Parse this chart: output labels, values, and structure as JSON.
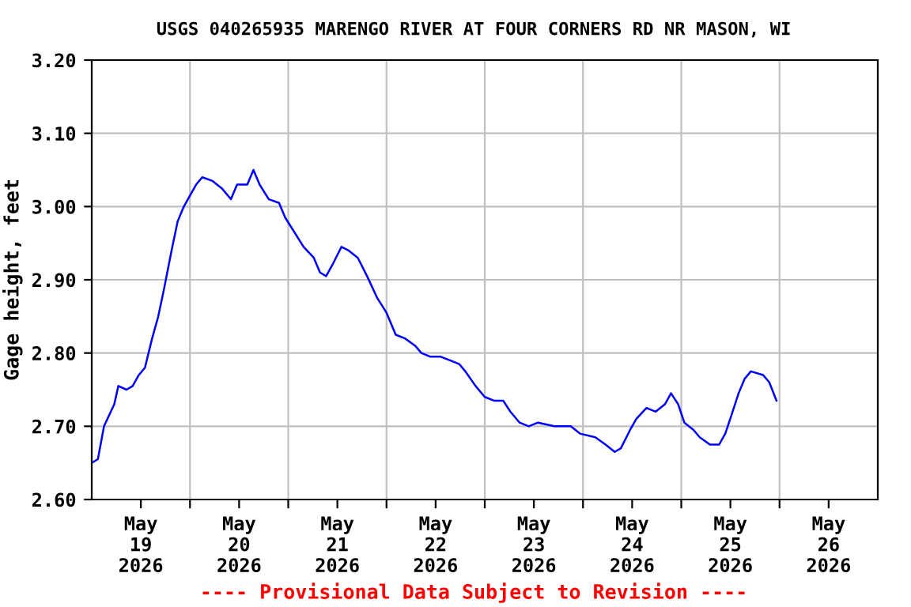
{
  "chart_data": {
    "type": "line",
    "title": "USGS 040265935 MARENGO RIVER AT FOUR CORNERS RD NR MASON, WI",
    "ylabel": "Gage height, feet",
    "annotations": [
      "---- Provisional Data Subject to Revision ----"
    ],
    "x": [
      "2026-05-19T00:00",
      "2026-05-19T01:30",
      "2026-05-19T03:00",
      "2026-05-19T05:30",
      "2026-05-19T06:30",
      "2026-05-19T08:30",
      "2026-05-19T10:00",
      "2026-05-19T11:30",
      "2026-05-19T13:00",
      "2026-05-19T14:45",
      "2026-05-19T16:15",
      "2026-05-19T17:45",
      "2026-05-19T19:30",
      "2026-05-19T21:00",
      "2026-05-19T22:30",
      "2026-05-20T00:00",
      "2026-05-20T01:30",
      "2026-05-20T03:00",
      "2026-05-20T05:30",
      "2026-05-20T07:45",
      "2026-05-20T10:00",
      "2026-05-20T11:30",
      "2026-05-20T14:00",
      "2026-05-20T15:30",
      "2026-05-20T17:00",
      "2026-05-20T19:15",
      "2026-05-20T21:45",
      "2026-05-20T23:15",
      "2026-05-21T01:30",
      "2026-05-21T03:45",
      "2026-05-21T06:15",
      "2026-05-21T07:45",
      "2026-05-21T09:15",
      "2026-05-21T10:45",
      "2026-05-21T13:00",
      "2026-05-21T14:45",
      "2026-05-21T17:00",
      "2026-05-21T19:15",
      "2026-05-21T21:45",
      "2026-05-22T00:00",
      "2026-05-22T02:15",
      "2026-05-22T04:30",
      "2026-05-22T07:00",
      "2026-05-22T08:30",
      "2026-05-22T10:45",
      "2026-05-22T13:15",
      "2026-05-22T15:30",
      "2026-05-22T17:45",
      "2026-05-22T19:15",
      "2026-05-22T21:45",
      "2026-05-23T00:00",
      "2026-05-23T02:15",
      "2026-05-23T04:30",
      "2026-05-23T06:15",
      "2026-05-23T08:30",
      "2026-05-23T10:45",
      "2026-05-23T13:00",
      "2026-05-23T17:00",
      "2026-05-23T21:00",
      "2026-05-23T23:15",
      "2026-05-24T03:00",
      "2026-05-24T05:30",
      "2026-05-24T07:45",
      "2026-05-24T09:15",
      "2026-05-24T11:30",
      "2026-05-24T13:00",
      "2026-05-24T15:30",
      "2026-05-24T17:45",
      "2026-05-24T20:00",
      "2026-05-24T21:30",
      "2026-05-24T23:15",
      "2026-05-25T00:45",
      "2026-05-25T03:00",
      "2026-05-25T04:30",
      "2026-05-25T07:00",
      "2026-05-25T09:15",
      "2026-05-25T10:45",
      "2026-05-25T12:15",
      "2026-05-25T14:00",
      "2026-05-25T15:30",
      "2026-05-25T17:00",
      "2026-05-25T20:00",
      "2026-05-25T21:30",
      "2026-05-25T23:15"
    ],
    "series": [
      {
        "color": "#0000ff",
        "values": [
          2.65,
          2.655,
          2.7,
          2.73,
          2.755,
          2.75,
          2.755,
          2.77,
          2.78,
          2.82,
          2.85,
          2.89,
          2.94,
          2.98,
          3.0,
          3.015,
          3.03,
          3.04,
          3.035,
          3.025,
          3.01,
          3.03,
          3.03,
          3.05,
          3.03,
          3.01,
          3.005,
          2.985,
          2.965,
          2.945,
          2.93,
          2.91,
          2.905,
          2.92,
          2.945,
          2.94,
          2.93,
          2.905,
          2.875,
          2.855,
          2.825,
          2.82,
          2.81,
          2.8,
          2.795,
          2.795,
          2.79,
          2.785,
          2.775,
          2.755,
          2.74,
          2.735,
          2.735,
          2.72,
          2.705,
          2.7,
          2.705,
          2.7,
          2.7,
          2.69,
          2.685,
          2.675,
          2.665,
          2.67,
          2.695,
          2.71,
          2.725,
          2.72,
          2.73,
          2.745,
          2.73,
          2.705,
          2.695,
          2.685,
          2.675,
          2.675,
          2.69,
          2.715,
          2.745,
          2.765,
          2.775,
          2.77,
          2.76,
          2.735
        ]
      }
    ],
    "xlim": [
      "2026-05-19T00:00",
      "2026-05-27T00:00"
    ],
    "xticks": [
      {
        "value": "2026-05-19T12:00",
        "label": "May\n19\n2026"
      },
      {
        "value": "2026-05-20T12:00",
        "label": "May\n20\n2026"
      },
      {
        "value": "2026-05-21T12:00",
        "label": "May\n21\n2026"
      },
      {
        "value": "2026-05-22T12:00",
        "label": "May\n22\n2026"
      },
      {
        "value": "2026-05-23T12:00",
        "label": "May\n23\n2026"
      },
      {
        "value": "2026-05-24T12:00",
        "label": "May\n24\n2026"
      },
      {
        "value": "2026-05-25T12:00",
        "label": "May\n25\n2026"
      },
      {
        "value": "2026-05-26T12:00",
        "label": "May\n26\n2026"
      },
      {
        "value": "2026-05-20T00:00",
        "label": null
      },
      {
        "value": "2026-05-21T00:00",
        "label": null
      },
      {
        "value": "2026-05-22T00:00",
        "label": null
      },
      {
        "value": "2026-05-23T00:00",
        "label": null
      },
      {
        "value": "2026-05-24T00:00",
        "label": null
      },
      {
        "value": "2026-05-25T00:00",
        "label": null
      },
      {
        "value": "2026-05-26T00:00",
        "label": null
      }
    ],
    "ylim": [
      2.6,
      3.2
    ],
    "yticks": [
      {
        "value": 2.6,
        "label": "2.60"
      },
      {
        "value": 2.7,
        "label": "2.70"
      },
      {
        "value": 2.8,
        "label": "2.80"
      },
      {
        "value": 2.9,
        "label": "2.90"
      },
      {
        "value": 3.0,
        "label": "3.00"
      },
      {
        "value": 3.1,
        "label": "3.10"
      },
      {
        "value": 3.2,
        "label": "3.20"
      }
    ],
    "grid": true,
    "legend": false
  }
}
